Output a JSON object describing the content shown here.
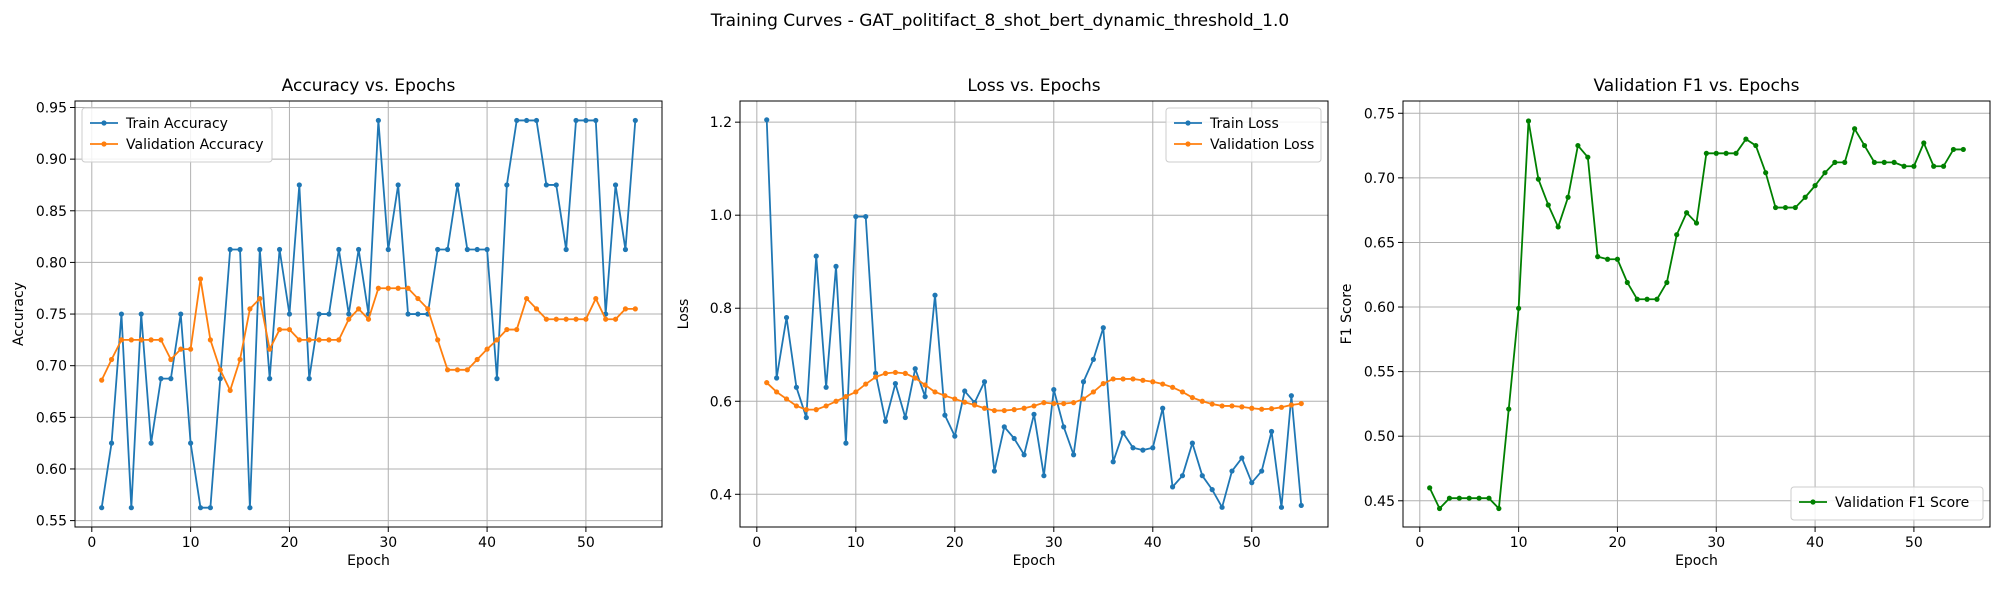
{
  "figure": {
    "title": "Training Curves - GAT_politifact_8_shot_bert_dynamic_threshold_1.0"
  },
  "chart_data": [
    {
      "type": "line",
      "title": "Accuracy vs. Epochs",
      "xlabel": "Epoch",
      "ylabel": "Accuracy",
      "xlim": [
        -1.7,
        57.7
      ],
      "ylim": [
        0.5438,
        0.9563
      ],
      "xticks": [
        0,
        10,
        20,
        30,
        40,
        50
      ],
      "yticks": [
        0.55,
        0.6,
        0.65,
        0.7,
        0.75,
        0.8,
        0.85,
        0.9,
        0.95
      ],
      "ytick_labels": [
        "0.55",
        "0.60",
        "0.65",
        "0.70",
        "0.75",
        "0.80",
        "0.85",
        "0.90",
        "0.95"
      ],
      "grid": true,
      "legend": "upper-left",
      "series": [
        {
          "name": "Train Accuracy",
          "color": "#1f77b4",
          "values": [
            0.5625,
            0.625,
            0.75,
            0.5625,
            0.75,
            0.625,
            0.6875,
            0.6875,
            0.75,
            0.625,
            0.5625,
            0.5625,
            0.6875,
            0.8125,
            0.8125,
            0.5625,
            0.8125,
            0.6875,
            0.8125,
            0.75,
            0.875,
            0.6875,
            0.75,
            0.75,
            0.8125,
            0.75,
            0.8125,
            0.75,
            0.9375,
            0.8125,
            0.875,
            0.75,
            0.75,
            0.75,
            0.8125,
            0.8125,
            0.875,
            0.8125,
            0.8125,
            0.8125,
            0.6875,
            0.875,
            0.9375,
            0.9375,
            0.9375,
            0.875,
            0.875,
            0.8125,
            0.9375,
            0.9375,
            0.9375,
            0.75,
            0.875,
            0.8125,
            0.9375
          ]
        },
        {
          "name": "Validation Accuracy",
          "color": "#ff7f0e",
          "values": [
            0.686,
            0.706,
            0.725,
            0.725,
            0.725,
            0.725,
            0.725,
            0.706,
            0.716,
            0.716,
            0.784,
            0.725,
            0.696,
            0.676,
            0.706,
            0.755,
            0.765,
            0.716,
            0.735,
            0.735,
            0.725,
            0.725,
            0.725,
            0.725,
            0.725,
            0.745,
            0.755,
            0.745,
            0.775,
            0.775,
            0.775,
            0.775,
            0.765,
            0.755,
            0.725,
            0.696,
            0.696,
            0.696,
            0.706,
            0.716,
            0.725,
            0.735,
            0.735,
            0.765,
            0.755,
            0.745,
            0.745,
            0.745,
            0.745,
            0.745,
            0.765,
            0.745,
            0.745,
            0.755,
            0.755
          ]
        }
      ]
    },
    {
      "type": "line",
      "title": "Loss vs. Epochs",
      "xlabel": "Epoch",
      "ylabel": "Loss",
      "xlim": [
        -1.7,
        57.7
      ],
      "ylim": [
        0.3297,
        1.2455
      ],
      "xticks": [
        0,
        10,
        20,
        30,
        40,
        50
      ],
      "yticks": [
        0.4,
        0.6,
        0.8,
        1.0,
        1.2
      ],
      "ytick_labels": [
        "0.4",
        "0.6",
        "0.8",
        "1.0",
        "1.2"
      ],
      "grid": true,
      "legend": "upper-right",
      "series": [
        {
          "name": "Train Loss",
          "color": "#1f77b4",
          "values": [
            1.205,
            0.65,
            0.78,
            0.63,
            0.565,
            0.912,
            0.63,
            0.89,
            0.51,
            0.997,
            0.997,
            0.66,
            0.557,
            0.638,
            0.565,
            0.67,
            0.61,
            0.828,
            0.57,
            0.525,
            0.622,
            0.597,
            0.642,
            0.45,
            0.545,
            0.52,
            0.485,
            0.572,
            0.44,
            0.625,
            0.545,
            0.485,
            0.642,
            0.69,
            0.758,
            0.47,
            0.532,
            0.5,
            0.495,
            0.5,
            0.585,
            0.416,
            0.44,
            0.51,
            0.44,
            0.41,
            0.372,
            0.45,
            0.478,
            0.425,
            0.45,
            0.535,
            0.372,
            0.612,
            0.376
          ]
        },
        {
          "name": "Validation Loss",
          "color": "#ff7f0e",
          "values": [
            0.64,
            0.62,
            0.605,
            0.59,
            0.582,
            0.582,
            0.59,
            0.6,
            0.61,
            0.62,
            0.637,
            0.652,
            0.66,
            0.662,
            0.66,
            0.65,
            0.635,
            0.62,
            0.612,
            0.605,
            0.598,
            0.592,
            0.585,
            0.58,
            0.58,
            0.582,
            0.585,
            0.59,
            0.597,
            0.595,
            0.595,
            0.597,
            0.605,
            0.62,
            0.638,
            0.648,
            0.648,
            0.648,
            0.645,
            0.642,
            0.637,
            0.63,
            0.62,
            0.608,
            0.6,
            0.594,
            0.59,
            0.59,
            0.588,
            0.585,
            0.583,
            0.584,
            0.587,
            0.592,
            0.595
          ]
        }
      ]
    },
    {
      "type": "line",
      "title": "Validation F1 vs. Epochs",
      "xlabel": "Epoch",
      "ylabel": "F1 Score",
      "xlim": [
        -1.7,
        57.7
      ],
      "ylim": [
        0.4297,
        0.7595
      ],
      "xticks": [
        0,
        10,
        20,
        30,
        40,
        50
      ],
      "yticks": [
        0.45,
        0.5,
        0.55,
        0.6,
        0.65,
        0.7,
        0.75
      ],
      "ytick_labels": [
        "0.45",
        "0.50",
        "0.55",
        "0.60",
        "0.65",
        "0.70",
        "0.75"
      ],
      "grid": true,
      "legend": "lower-right",
      "series": [
        {
          "name": "Validation F1 Score",
          "color": "#008000",
          "values": [
            0.46,
            0.444,
            0.452,
            0.452,
            0.452,
            0.452,
            0.452,
            0.444,
            0.521,
            0.599,
            0.744,
            0.699,
            0.679,
            0.662,
            0.685,
            0.725,
            0.716,
            0.639,
            0.637,
            0.637,
            0.619,
            0.606,
            0.606,
            0.606,
            0.619,
            0.656,
            0.673,
            0.665,
            0.719,
            0.719,
            0.719,
            0.719,
            0.73,
            0.725,
            0.704,
            0.677,
            0.677,
            0.677,
            0.685,
            0.694,
            0.704,
            0.712,
            0.712,
            0.738,
            0.725,
            0.712,
            0.712,
            0.712,
            0.709,
            0.709,
            0.727,
            0.709,
            0.709,
            0.722,
            0.722
          ]
        }
      ]
    }
  ]
}
